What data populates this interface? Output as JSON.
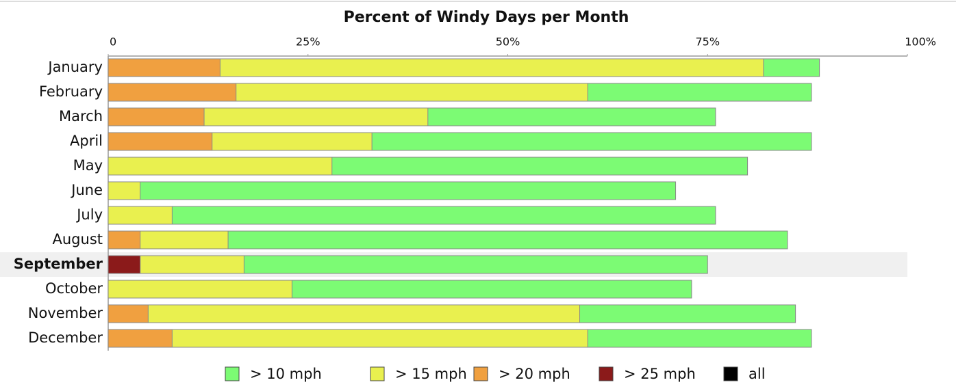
{
  "chart_data": {
    "type": "overlap-bar",
    "orientation": "horizontal",
    "title": "Percent of Windy Days per Month",
    "categories": [
      "January",
      "February",
      "March",
      "April",
      "May",
      "June",
      "July",
      "August",
      "September",
      "October",
      "November",
      "December"
    ],
    "highlight_category": "September",
    "series": [
      {
        "name": "> 10 mph",
        "color": "#7cfb74",
        "values": [
          89,
          88,
          76,
          88,
          80,
          71,
          76,
          85,
          75,
          73,
          86,
          88
        ]
      },
      {
        "name": "> 15 mph",
        "color": "#e9f04f",
        "values": [
          82,
          60,
          40,
          33,
          28,
          4,
          8,
          15,
          17,
          23,
          59,
          60
        ]
      },
      {
        "name": "> 20 mph",
        "color": "#f0a040",
        "values": [
          14,
          16,
          12,
          13,
          0,
          0,
          0,
          4,
          4,
          0,
          5,
          8
        ]
      },
      {
        "name": "> 25 mph",
        "color": "#8b1a1a",
        "values": [
          0,
          0,
          0,
          0,
          0,
          0,
          0,
          0,
          4,
          0,
          0,
          0
        ]
      },
      {
        "name": "all",
        "color": "#000000",
        "values": [
          null,
          null,
          null,
          null,
          null,
          null,
          null,
          null,
          null,
          null,
          null,
          null
        ]
      }
    ],
    "xlim": [
      0,
      100
    ],
    "xticks": [
      0,
      {
        "value": 25,
        "label": "25%"
      },
      {
        "value": 50,
        "label": "50%"
      },
      {
        "value": 75,
        "label": "75%"
      },
      {
        "value": 100,
        "label": "100%"
      }
    ]
  }
}
